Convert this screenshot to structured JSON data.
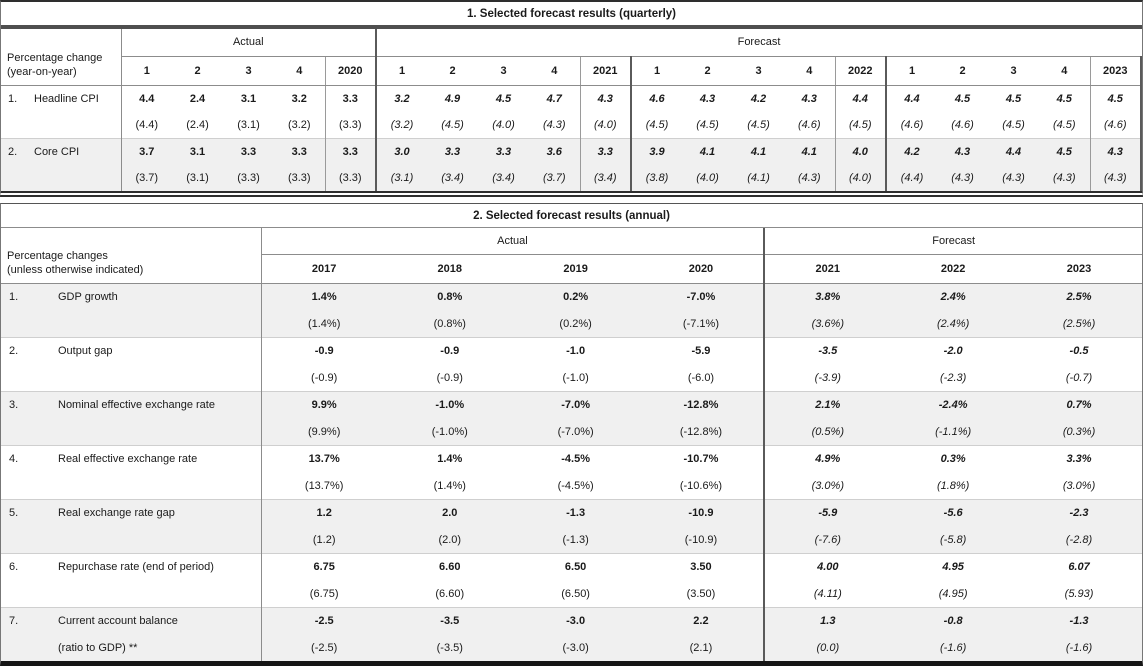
{
  "colors": {
    "shaded_row_bg": "#f0f0f0",
    "thin_border": "#8c8c8c",
    "thick_border": "#2e2e2e"
  },
  "table1": {
    "title": "1. Selected forecast results (quarterly)",
    "corner": {
      "line1": "Percentage change",
      "line2": "(year-on-year)"
    },
    "group_headers": {
      "actual": "Actual",
      "forecast": "Forecast"
    },
    "col_headers": [
      "1",
      "2",
      "3",
      "4",
      "2020",
      "1",
      "2",
      "3",
      "4",
      "2021",
      "1",
      "2",
      "3",
      "4",
      "2022",
      "1",
      "2",
      "3",
      "4",
      "2023"
    ],
    "rows": [
      {
        "num": "1.",
        "label": "Headline CPI",
        "values": [
          "4.4",
          "2.4",
          "3.1",
          "3.2",
          "3.3",
          "3.2",
          "4.9",
          "4.5",
          "4.7",
          "4.3",
          "4.6",
          "4.3",
          "4.2",
          "4.3",
          "4.4",
          "4.4",
          "4.5",
          "4.5",
          "4.5",
          "4.5"
        ],
        "parens": [
          "(4.4)",
          "(2.4)",
          "(3.1)",
          "(3.2)",
          "(3.3)",
          "(3.2)",
          "(4.5)",
          "(4.0)",
          "(4.3)",
          "(4.0)",
          "(4.5)",
          "(4.5)",
          "(4.5)",
          "(4.6)",
          "(4.5)",
          "(4.6)",
          "(4.6)",
          "(4.5)",
          "(4.5)",
          "(4.6)"
        ]
      },
      {
        "num": "2.",
        "label": "Core CPI",
        "values": [
          "3.7",
          "3.1",
          "3.3",
          "3.3",
          "3.3",
          "3.0",
          "3.3",
          "3.3",
          "3.6",
          "3.3",
          "3.9",
          "4.1",
          "4.1",
          "4.1",
          "4.0",
          "4.2",
          "4.3",
          "4.4",
          "4.5",
          "4.3"
        ],
        "parens": [
          "(3.7)",
          "(3.1)",
          "(3.3)",
          "(3.3)",
          "(3.3)",
          "(3.1)",
          "(3.4)",
          "(3.4)",
          "(3.7)",
          "(3.4)",
          "(3.8)",
          "(4.0)",
          "(4.1)",
          "(4.3)",
          "(4.0)",
          "(4.4)",
          "(4.3)",
          "(4.3)",
          "(4.3)",
          "(4.3)"
        ]
      }
    ]
  },
  "table2": {
    "title": "2. Selected forecast results (annual)",
    "corner": {
      "line1": "Percentage changes",
      "line2": "(unless otherwise indicated)"
    },
    "group_headers": {
      "actual": "Actual",
      "forecast": "Forecast"
    },
    "col_headers": [
      "2017",
      "2018",
      "2019",
      "2020",
      "2021",
      "2022",
      "2023"
    ],
    "rows": [
      {
        "num": "1.",
        "label": "GDP growth",
        "values": [
          "1.4%",
          "0.8%",
          "0.2%",
          "-7.0%",
          "3.8%",
          "2.4%",
          "2.5%"
        ],
        "parens": [
          "(1.4%)",
          "(0.8%)",
          "(0.2%)",
          "(-7.1%)",
          "(3.6%)",
          "(2.4%)",
          "(2.5%)"
        ]
      },
      {
        "num": "2.",
        "label": "Output gap",
        "values": [
          "-0.9",
          "-0.9",
          "-1.0",
          "-5.9",
          "-3.5",
          "-2.0",
          "-0.5"
        ],
        "parens": [
          "(-0.9)",
          "(-0.9)",
          "(-1.0)",
          "(-6.0)",
          "(-3.9)",
          "(-2.3)",
          "(-0.7)"
        ]
      },
      {
        "num": "3.",
        "label": "Nominal effective exchange rate",
        "values": [
          "9.9%",
          "-1.0%",
          "-7.0%",
          "-12.8%",
          "2.1%",
          "-2.4%",
          "0.7%"
        ],
        "parens": [
          "(9.9%)",
          "(-1.0%)",
          "(-7.0%)",
          "(-12.8%)",
          "(0.5%)",
          "(-1.1%)",
          "(0.3%)"
        ]
      },
      {
        "num": "4.",
        "label": "Real effective exchange rate",
        "values": [
          "13.7%",
          "1.4%",
          "-4.5%",
          "-10.7%",
          "4.9%",
          "0.3%",
          "3.3%"
        ],
        "parens": [
          "(13.7%)",
          "(1.4%)",
          "(-4.5%)",
          "(-10.6%)",
          "(3.0%)",
          "(1.8%)",
          "(3.0%)"
        ]
      },
      {
        "num": "5.",
        "label": "Real exchange rate gap",
        "values": [
          "1.2",
          "2.0",
          "-1.3",
          "-10.9",
          "-5.9",
          "-5.6",
          "-2.3"
        ],
        "parens": [
          "(1.2)",
          "(2.0)",
          "(-1.3)",
          "(-10.9)",
          "(-7.6)",
          "(-5.8)",
          "(-2.8)"
        ]
      },
      {
        "num": "6.",
        "label": "Repurchase rate (end of period)",
        "values": [
          "6.75",
          "6.60",
          "6.50",
          "3.50",
          "4.00",
          "4.95",
          "6.07"
        ],
        "parens": [
          "(6.75)",
          "(6.60)",
          "(6.50)",
          "(3.50)",
          "(4.11)",
          "(4.95)",
          "(5.93)"
        ]
      },
      {
        "num": "7.",
        "label": "Current account balance",
        "label2": "(ratio to GDP) **",
        "values": [
          "-2.5",
          "-3.5",
          "-3.0",
          "2.2",
          "1.3",
          "-0.8",
          "-1.3"
        ],
        "parens": [
          "(-2.5)",
          "(-3.5)",
          "(-3.0)",
          "(2.1)",
          "(0.0)",
          "(-1.6)",
          "(-1.6)"
        ]
      }
    ]
  }
}
